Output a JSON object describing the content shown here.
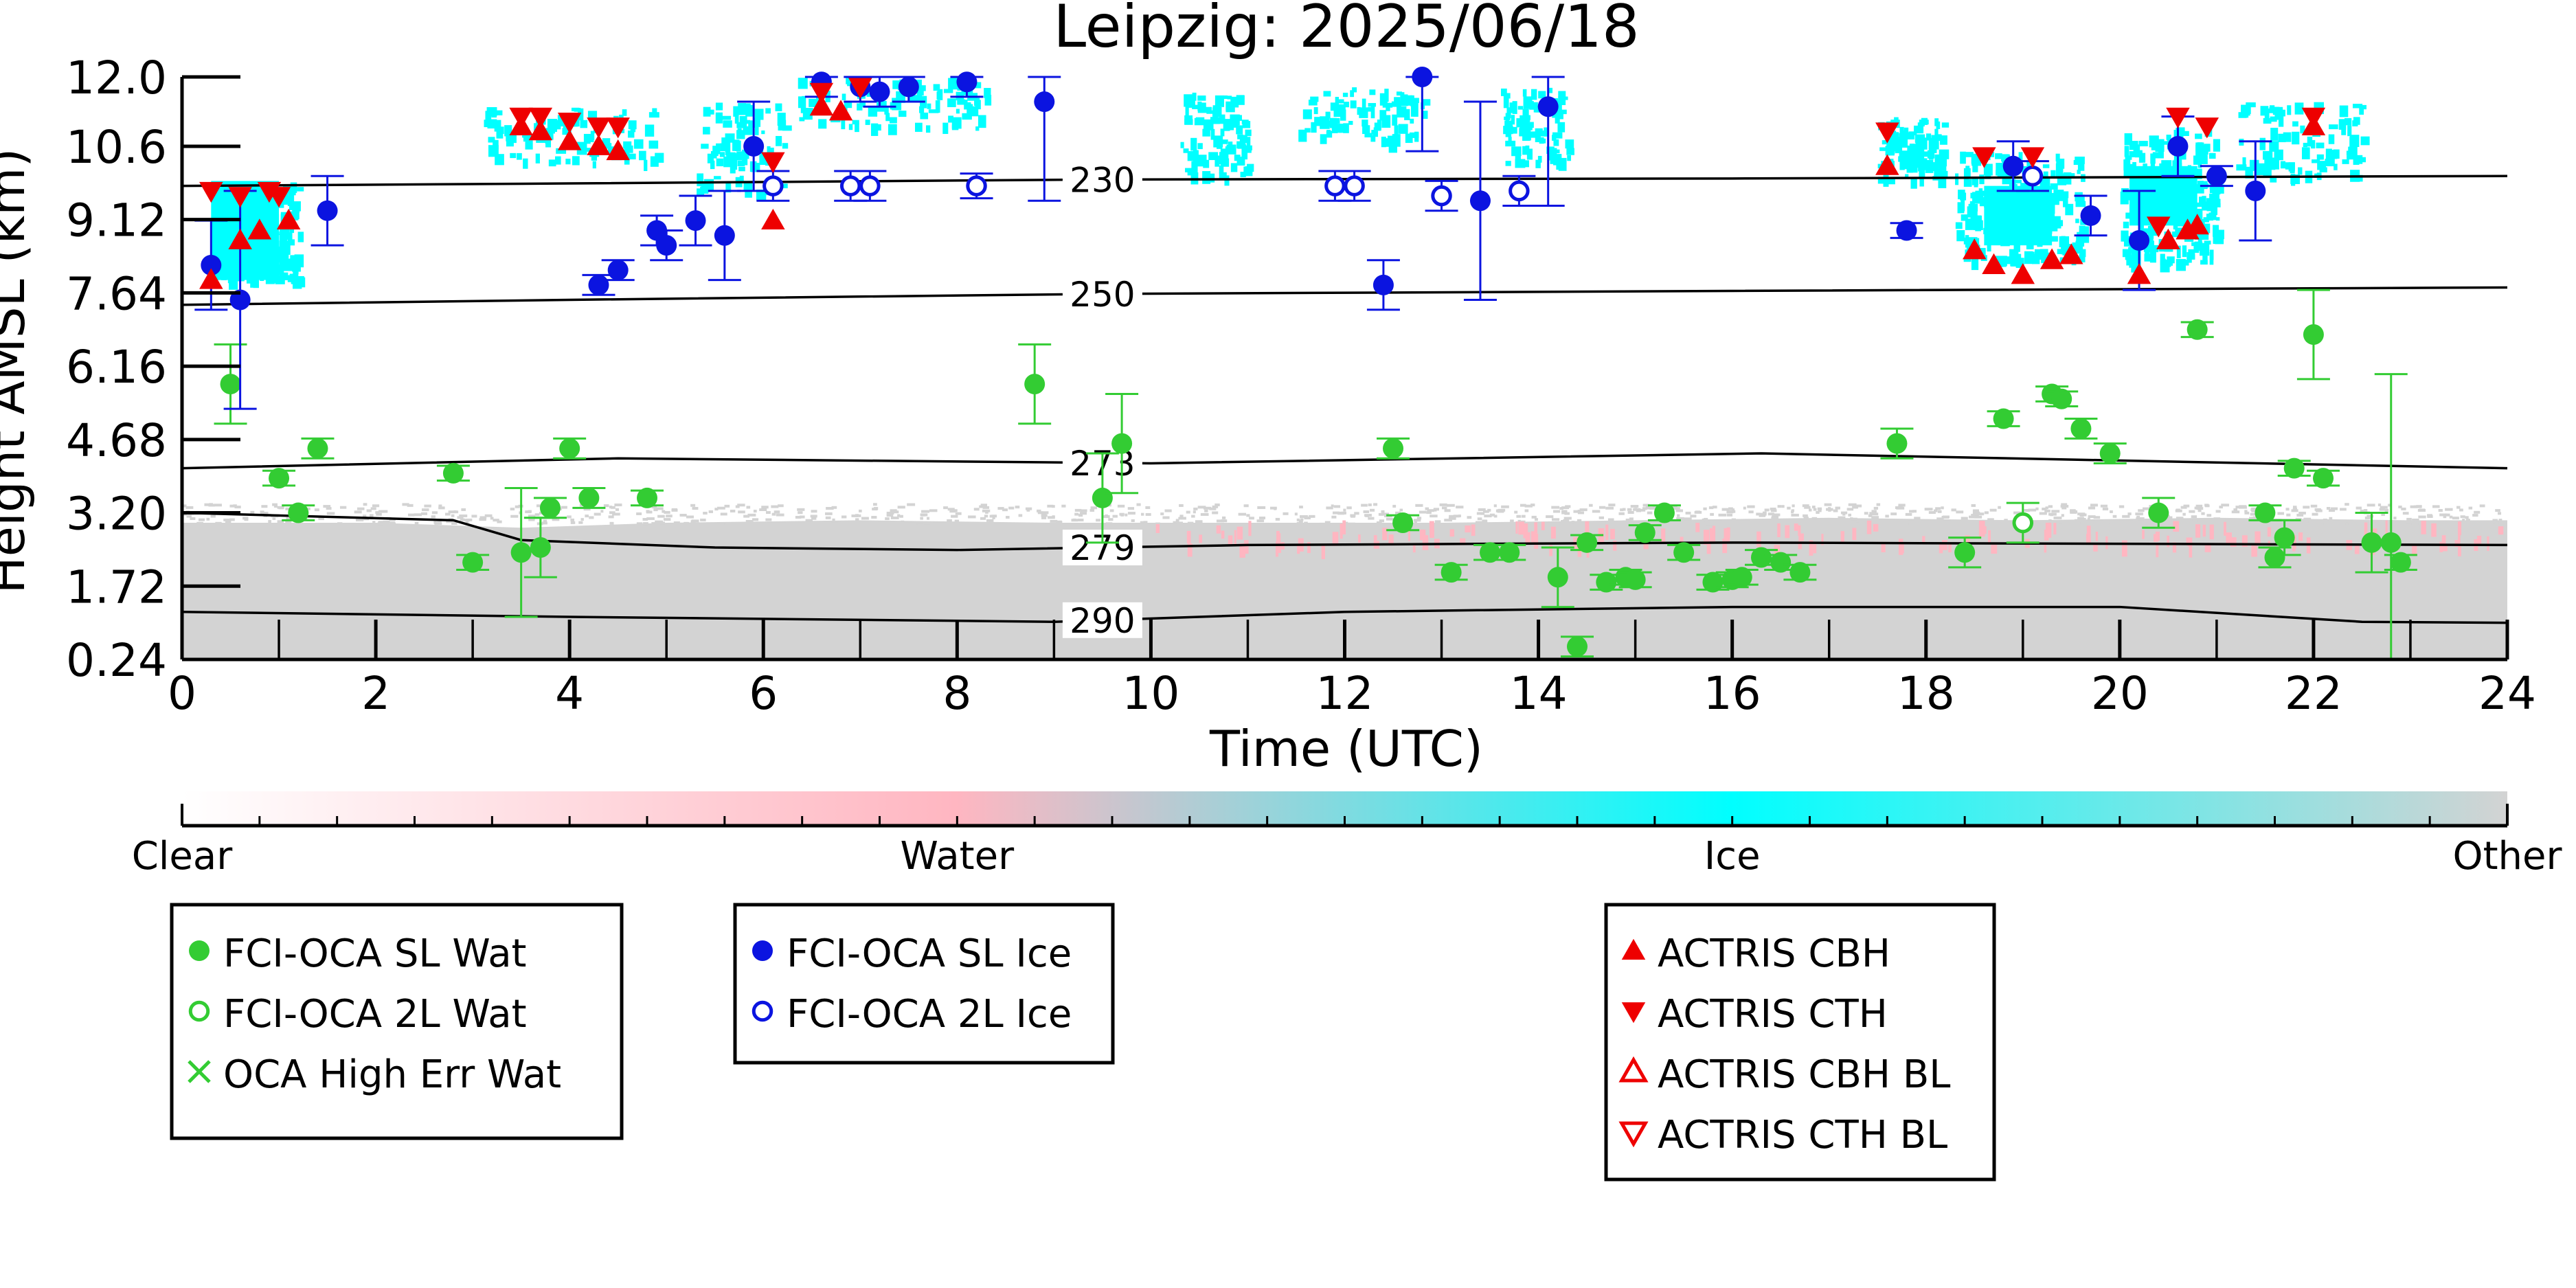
{
  "chart_data": {
    "type": "scatter",
    "title": "Leipzig: 2025/06/18",
    "xlabel": "Time (UTC)",
    "ylabel": "Height AMSL (km)",
    "xlim": [
      0,
      24
    ],
    "ylim": [
      0.24,
      12.0
    ],
    "x_ticks": [
      0,
      2,
      4,
      6,
      8,
      10,
      12,
      14,
      16,
      18,
      20,
      22,
      24
    ],
    "y_ticks": [
      0.24,
      1.72,
      3.2,
      4.68,
      6.16,
      7.64,
      9.12,
      10.6,
      12.0
    ],
    "y_tick_labels": [
      "0.24",
      "1.72",
      "3.20",
      "4.68",
      "6.16",
      "7.64",
      "9.12",
      "10.6",
      "12.0"
    ],
    "colorbar": {
      "labels": [
        "Clear",
        "Water",
        "Ice",
        "Other"
      ],
      "colors": [
        "#ffffff",
        "#ffb6c1",
        "#00ffff",
        "#d3d3d3"
      ]
    },
    "temperature_contours": [
      {
        "label": "230",
        "points": [
          [
            0,
            9.8
          ],
          [
            4,
            9.85
          ],
          [
            9.5,
            9.93
          ],
          [
            16,
            9.95
          ],
          [
            24,
            10.0
          ]
        ]
      },
      {
        "label": "250",
        "points": [
          [
            0,
            7.4
          ],
          [
            4,
            7.5
          ],
          [
            9.5,
            7.62
          ],
          [
            16,
            7.68
          ],
          [
            24,
            7.75
          ]
        ]
      },
      {
        "label": "273",
        "points": [
          [
            0,
            4.1
          ],
          [
            4.5,
            4.3
          ],
          [
            10,
            4.2
          ],
          [
            16.3,
            4.4
          ],
          [
            24,
            4.1
          ]
        ]
      },
      {
        "label": "279",
        "points": [
          [
            0,
            3.2
          ],
          [
            2.8,
            3.05
          ],
          [
            3.5,
            2.65
          ],
          [
            5.5,
            2.5
          ],
          [
            8,
            2.45
          ],
          [
            11,
            2.55
          ],
          [
            16,
            2.6
          ],
          [
            24,
            2.55
          ]
        ]
      },
      {
        "label": "290",
        "points": [
          [
            0,
            1.2
          ],
          [
            4,
            1.1
          ],
          [
            9,
            1.0
          ],
          [
            12,
            1.2
          ],
          [
            16,
            1.3
          ],
          [
            20,
            1.3
          ],
          [
            22.5,
            1.0
          ],
          [
            24,
            0.98
          ]
        ]
      }
    ],
    "series": [
      {
        "name": "FCI-OCA SL Wat",
        "color": "#33cc33",
        "marker": "filled-circle",
        "points": [
          [
            0.5,
            5.8,
            0.8
          ],
          [
            1.0,
            3.9,
            0.15
          ],
          [
            1.2,
            3.2,
            0.15
          ],
          [
            1.4,
            4.5,
            0.2
          ],
          [
            2.8,
            4.0,
            0.15
          ],
          [
            3.0,
            2.2,
            0.15
          ],
          [
            3.5,
            2.4,
            1.3
          ],
          [
            3.7,
            2.5,
            0.6
          ],
          [
            3.8,
            3.3,
            0.2
          ],
          [
            4.0,
            4.5,
            0.2
          ],
          [
            4.2,
            3.5,
            0.2
          ],
          [
            4.8,
            3.5,
            0.15
          ],
          [
            8.8,
            5.8,
            0.8
          ],
          [
            9.5,
            3.5,
            0.9
          ],
          [
            9.7,
            4.6,
            1.0
          ],
          [
            12.5,
            4.5,
            0.2
          ],
          [
            12.6,
            3.0,
            0.15
          ],
          [
            13.1,
            2.0,
            0.15
          ],
          [
            13.5,
            2.4,
            0.15
          ],
          [
            13.7,
            2.4,
            0.15
          ],
          [
            14.2,
            1.9,
            0.6
          ],
          [
            14.5,
            2.6,
            0.15
          ],
          [
            14.7,
            1.8,
            0.15
          ],
          [
            14.9,
            1.9,
            0.15
          ],
          [
            15.0,
            1.85,
            0.15
          ],
          [
            15.1,
            2.8,
            0.15
          ],
          [
            15.3,
            3.2,
            0.15
          ],
          [
            15.5,
            2.4,
            0.15
          ],
          [
            15.8,
            1.8,
            0.15
          ],
          [
            16.0,
            1.85,
            0.15
          ],
          [
            16.1,
            1.9,
            0.15
          ],
          [
            16.3,
            2.3,
            0.15
          ],
          [
            16.5,
            2.2,
            0.15
          ],
          [
            16.7,
            2.0,
            0.15
          ],
          [
            17.7,
            4.6,
            0.3
          ],
          [
            18.4,
            2.4,
            0.3
          ],
          [
            18.8,
            5.1,
            0.15
          ],
          [
            19.3,
            5.6,
            0.15
          ],
          [
            19.4,
            5.5,
            0.15
          ],
          [
            19.6,
            4.9,
            0.2
          ],
          [
            19.9,
            4.4,
            0.2
          ],
          [
            20.4,
            3.2,
            0.3
          ],
          [
            20.8,
            6.9,
            0.15
          ],
          [
            21.5,
            3.2,
            0.15
          ],
          [
            21.6,
            2.3,
            0.2
          ],
          [
            21.7,
            2.7,
            0.35
          ],
          [
            21.8,
            4.1,
            0.15
          ],
          [
            22.0,
            6.8,
            0.9
          ],
          [
            22.1,
            3.9,
            0.15
          ],
          [
            22.6,
            2.6,
            0.6
          ],
          [
            22.8,
            2.6,
            3.4
          ],
          [
            22.9,
            2.2,
            0.15
          ],
          [
            14.4,
            0.5,
            0.2
          ]
        ]
      },
      {
        "name": "FCI-OCA 2L Wat",
        "color": "#33cc33",
        "marker": "open-circle",
        "points": [
          [
            19.0,
            3.0,
            0.4
          ]
        ]
      },
      {
        "name": "OCA High Err Wat",
        "color": "#33cc33",
        "marker": "x",
        "points": []
      },
      {
        "name": "FCI-OCA SL Ice",
        "color": "#0b14e0",
        "marker": "filled-circle",
        "points": [
          [
            0.3,
            8.2,
            0.9
          ],
          [
            0.6,
            7.5,
            2.2
          ],
          [
            1.5,
            9.3,
            0.7
          ],
          [
            4.3,
            7.8,
            0.2
          ],
          [
            4.5,
            8.1,
            0.2
          ],
          [
            4.9,
            8.9,
            0.3
          ],
          [
            5.0,
            8.6,
            0.3
          ],
          [
            5.3,
            9.1,
            0.5
          ],
          [
            5.6,
            8.8,
            0.9
          ],
          [
            5.9,
            10.6,
            0.9
          ],
          [
            6.6,
            11.9,
            0.3
          ],
          [
            7.0,
            11.8,
            0.3
          ],
          [
            7.2,
            11.7,
            0.3
          ],
          [
            7.5,
            11.8,
            0.3
          ],
          [
            8.1,
            11.9,
            0.3
          ],
          [
            8.9,
            11.5,
            2.0
          ],
          [
            12.4,
            7.8,
            0.5
          ],
          [
            12.8,
            12.0,
            1.5
          ],
          [
            13.4,
            9.5,
            2.0
          ],
          [
            14.1,
            11.4,
            2.0
          ],
          [
            17.8,
            8.9,
            0.15
          ],
          [
            18.9,
            10.2,
            0.5
          ],
          [
            19.7,
            9.2,
            0.4
          ],
          [
            20.2,
            8.7,
            1.0
          ],
          [
            20.6,
            10.6,
            0.6
          ],
          [
            21.0,
            10.0,
            0.2
          ],
          [
            21.4,
            9.7,
            1.0
          ]
        ]
      },
      {
        "name": "FCI-OCA 2L Ice",
        "color": "#0b14e0",
        "marker": "open-circle",
        "points": [
          [
            6.1,
            9.8,
            0.3
          ],
          [
            6.9,
            9.8,
            0.3
          ],
          [
            7.1,
            9.8,
            0.3
          ],
          [
            8.2,
            9.8,
            0.25
          ],
          [
            11.9,
            9.8,
            0.3
          ],
          [
            12.1,
            9.8,
            0.3
          ],
          [
            13.0,
            9.6,
            0.3
          ],
          [
            13.8,
            9.7,
            0.3
          ],
          [
            19.1,
            10.0,
            0.3
          ]
        ]
      },
      {
        "name": "ACTRIS CBH",
        "color": "#ee0000",
        "marker": "triangle-up",
        "points": [
          [
            0.3,
            7.9
          ],
          [
            0.6,
            8.7
          ],
          [
            0.8,
            8.9
          ],
          [
            1.1,
            9.1
          ],
          [
            3.5,
            11.0
          ],
          [
            3.7,
            10.9
          ],
          [
            4.0,
            10.7
          ],
          [
            4.3,
            10.6
          ],
          [
            4.5,
            10.5
          ],
          [
            6.1,
            9.1
          ],
          [
            6.6,
            11.4
          ],
          [
            6.8,
            11.3
          ],
          [
            17.6,
            10.2
          ],
          [
            18.5,
            8.5
          ],
          [
            18.7,
            8.2
          ],
          [
            19.0,
            8.0
          ],
          [
            19.3,
            8.3
          ],
          [
            19.5,
            8.4
          ],
          [
            20.2,
            8.0
          ],
          [
            20.5,
            8.7
          ],
          [
            20.7,
            8.9
          ],
          [
            20.8,
            9.0
          ],
          [
            22.0,
            11.0
          ]
        ]
      },
      {
        "name": "ACTRIS CTH",
        "color": "#ee0000",
        "marker": "triangle-down",
        "points": [
          [
            0.3,
            9.7
          ],
          [
            0.6,
            9.6
          ],
          [
            0.9,
            9.7
          ],
          [
            1.0,
            9.6
          ],
          [
            3.5,
            11.2
          ],
          [
            3.7,
            11.2
          ],
          [
            4.0,
            11.1
          ],
          [
            4.3,
            11.0
          ],
          [
            4.5,
            11.0
          ],
          [
            6.1,
            10.3
          ],
          [
            6.6,
            11.7
          ],
          [
            7.0,
            11.8
          ],
          [
            17.6,
            10.9
          ],
          [
            18.6,
            10.4
          ],
          [
            19.1,
            10.4
          ],
          [
            20.4,
            9.0
          ],
          [
            20.6,
            11.2
          ],
          [
            20.9,
            11.0
          ],
          [
            22.0,
            11.2
          ]
        ]
      },
      {
        "name": "ACTRIS CBH BL",
        "color": "#ee0000",
        "marker": "open-triangle-up",
        "points": []
      },
      {
        "name": "ACTRIS CTH BL",
        "color": "#ee0000",
        "marker": "open-triangle-down",
        "points": []
      }
    ],
    "legend": [
      [
        "FCI-OCA SL Wat",
        "FCI-OCA 2L Wat",
        "OCA High Err Wat"
      ],
      [
        "FCI-OCA SL Ice",
        "FCI-OCA 2L Ice"
      ],
      [
        "ACTRIS CBH",
        "ACTRIS CTH",
        "ACTRIS CBH BL",
        "ACTRIS CTH BL"
      ]
    ],
    "legend_placement": "bottom",
    "grid": false
  }
}
